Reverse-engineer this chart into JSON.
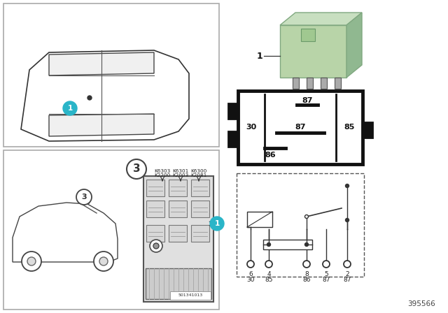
{
  "bg_color": "#ffffff",
  "relay_color": "#b8d4a8",
  "relay_dark": "#90b890",
  "relay_top": "#c8dfc0",
  "relay_label": "1",
  "callout_color": "#2ab5c8",
  "callout_text_color": "#ffffff",
  "part_number": "395566",
  "fuse_box_code": "501341013",
  "fuse_positions": [
    [
      "K6303",
      "K2200"
    ],
    [
      "K6301",
      "K2003"
    ],
    [
      "K6300",
      "K2081"
    ]
  ],
  "pin_nums": [
    "6",
    "4",
    "8",
    "5",
    "2"
  ],
  "pin_alts": [
    "30",
    "85",
    "86",
    "87",
    "87"
  ],
  "circuit_pins": [
    "87",
    "30",
    "87",
    "85",
    "86"
  ]
}
